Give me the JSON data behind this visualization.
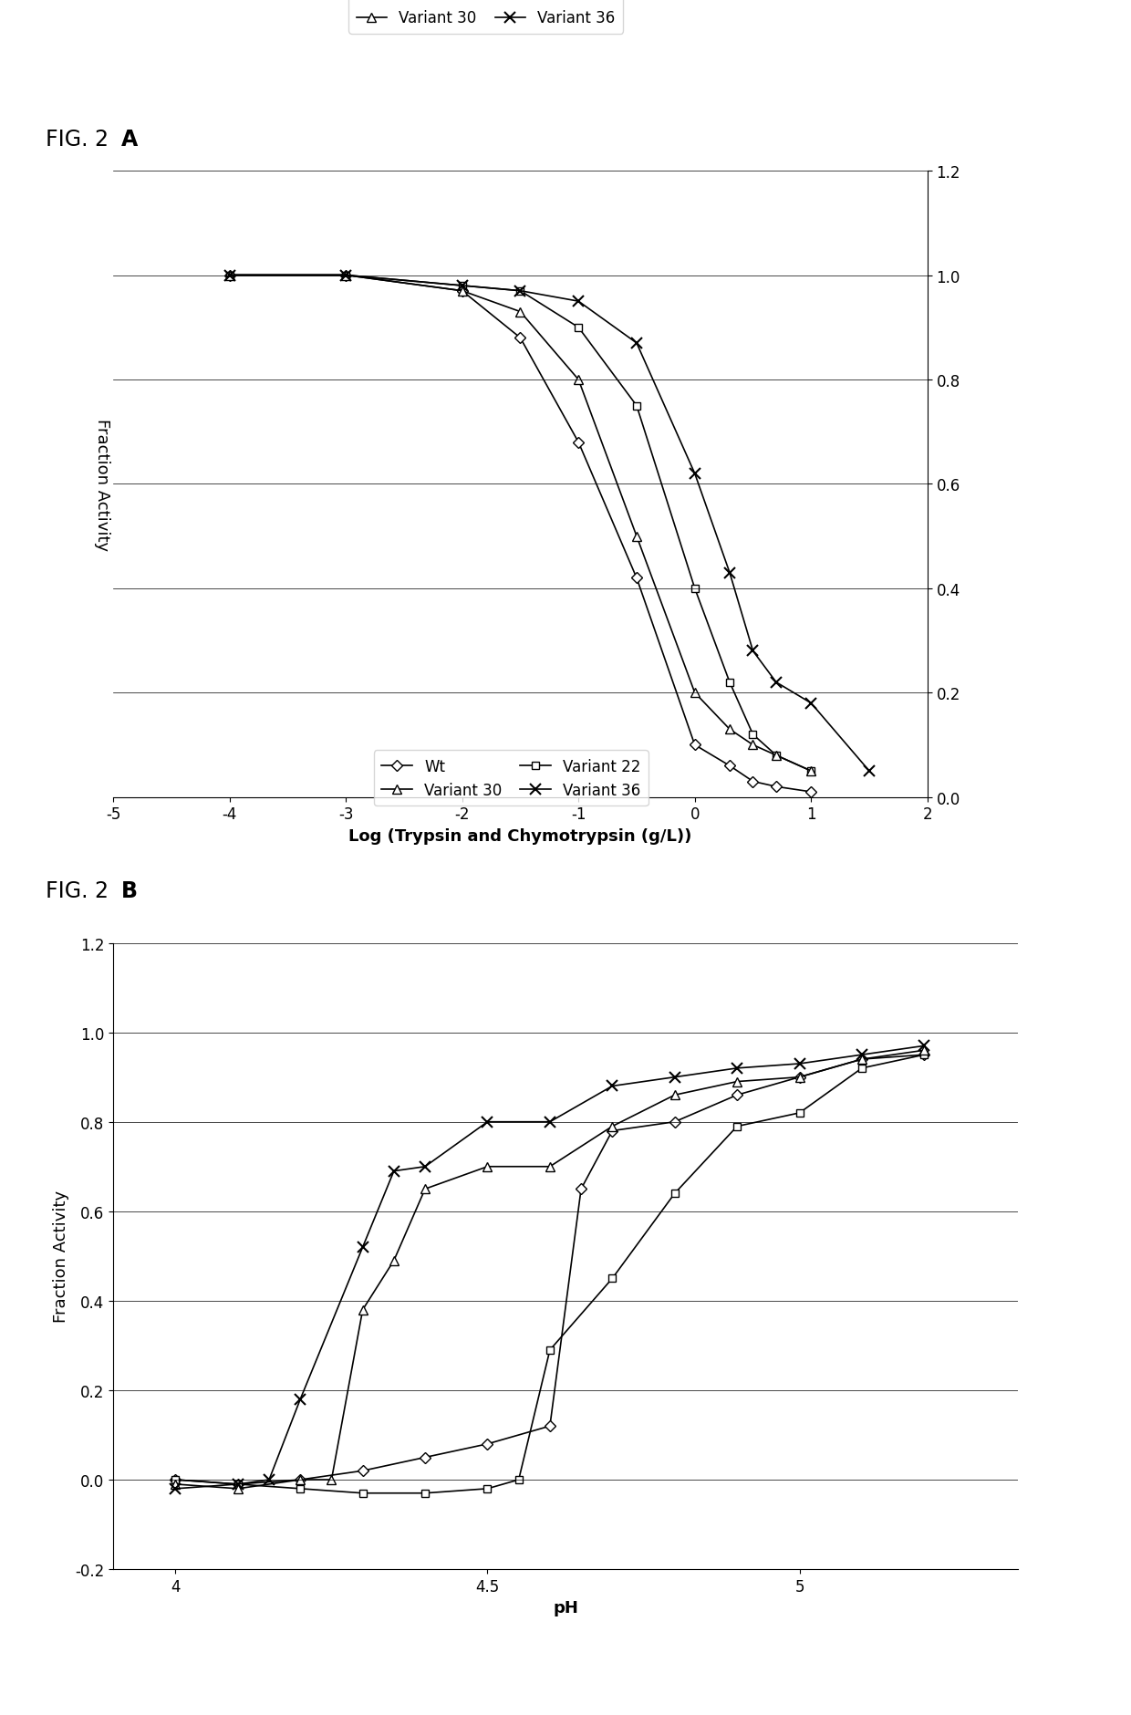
{
  "fig_a": {
    "xlabel": "Log (Trypsin and Chymotrypsin (g/L))",
    "ylabel": "Fraction Activity",
    "xlim": [
      -5,
      2
    ],
    "ylim": [
      0.0,
      1.2
    ],
    "xticks": [
      -5,
      -4,
      -3,
      -2,
      -1,
      0,
      1,
      2
    ],
    "yticks": [
      0.0,
      0.2,
      0.4,
      0.6,
      0.8,
      1.0,
      1.2
    ],
    "series": {
      "Wt": {
        "x": [
          -4,
          -3,
          -2,
          -1.5,
          -1,
          -0.5,
          0,
          0.3,
          0.5,
          0.7,
          1.0
        ],
        "y": [
          1.0,
          1.0,
          0.97,
          0.88,
          0.68,
          0.42,
          0.1,
          0.06,
          0.03,
          0.02,
          0.01
        ]
      },
      "Variant 22": {
        "x": [
          -4,
          -3,
          -2,
          -1.5,
          -1,
          -0.5,
          0,
          0.3,
          0.5,
          0.7,
          1.0
        ],
        "y": [
          1.0,
          1.0,
          0.98,
          0.97,
          0.9,
          0.75,
          0.4,
          0.22,
          0.12,
          0.08,
          0.05
        ]
      },
      "Variant 30": {
        "x": [
          -4,
          -3,
          -2,
          -1.5,
          -1,
          -0.5,
          0,
          0.3,
          0.5,
          0.7,
          1.0
        ],
        "y": [
          1.0,
          1.0,
          0.97,
          0.93,
          0.8,
          0.5,
          0.2,
          0.13,
          0.1,
          0.08,
          0.05
        ]
      },
      "Variant 36": {
        "x": [
          -4,
          -3,
          -2,
          -1.5,
          -1,
          -0.5,
          0,
          0.3,
          0.5,
          0.7,
          1.0,
          1.5
        ],
        "y": [
          1.0,
          1.0,
          0.98,
          0.97,
          0.95,
          0.87,
          0.62,
          0.43,
          0.28,
          0.22,
          0.18,
          0.05
        ]
      }
    }
  },
  "fig_b": {
    "xlabel": "pH",
    "ylabel": "Fraction Activity",
    "xlim": [
      3.9,
      5.35
    ],
    "ylim": [
      -0.2,
      1.2
    ],
    "xticks": [
      4.0,
      4.5,
      5.0
    ],
    "xtick_labels": [
      "4",
      "4.5",
      "5"
    ],
    "yticks": [
      -0.2,
      0.0,
      0.2,
      0.4,
      0.6,
      0.8,
      1.0,
      1.2
    ],
    "series": {
      "Wt": {
        "x": [
          4.0,
          4.1,
          4.2,
          4.3,
          4.4,
          4.5,
          4.6,
          4.65,
          4.7,
          4.8,
          4.9,
          5.0,
          5.1,
          5.2
        ],
        "y": [
          0.0,
          -0.01,
          0.0,
          0.02,
          0.05,
          0.08,
          0.12,
          0.65,
          0.78,
          0.8,
          0.86,
          0.9,
          0.94,
          0.95
        ]
      },
      "Variant 22": {
        "x": [
          4.0,
          4.1,
          4.2,
          4.3,
          4.4,
          4.5,
          4.55,
          4.6,
          4.7,
          4.8,
          4.9,
          5.0,
          5.1,
          5.2
        ],
        "y": [
          0.0,
          -0.01,
          -0.02,
          -0.03,
          -0.03,
          -0.02,
          0.0,
          0.29,
          0.45,
          0.64,
          0.79,
          0.82,
          0.92,
          0.95
        ]
      },
      "Variant 30": {
        "x": [
          4.0,
          4.1,
          4.2,
          4.25,
          4.3,
          4.35,
          4.4,
          4.5,
          4.6,
          4.7,
          4.8,
          4.9,
          5.0,
          5.1,
          5.2
        ],
        "y": [
          -0.01,
          -0.02,
          0.0,
          0.0,
          0.38,
          0.49,
          0.65,
          0.7,
          0.7,
          0.79,
          0.86,
          0.89,
          0.9,
          0.94,
          0.96
        ]
      },
      "Variant 36": {
        "x": [
          4.0,
          4.1,
          4.15,
          4.2,
          4.3,
          4.35,
          4.4,
          4.5,
          4.6,
          4.7,
          4.8,
          4.9,
          5.0,
          5.1,
          5.2
        ],
        "y": [
          -0.02,
          -0.01,
          0.0,
          0.18,
          0.52,
          0.69,
          0.7,
          0.8,
          0.8,
          0.88,
          0.9,
          0.92,
          0.93,
          0.95,
          0.97
        ]
      }
    }
  },
  "line_color": "#000000",
  "background_color": "#ffffff",
  "fig_label_fontsize": 17,
  "axis_label_fontsize": 13,
  "tick_fontsize": 12,
  "legend_fontsize": 12
}
